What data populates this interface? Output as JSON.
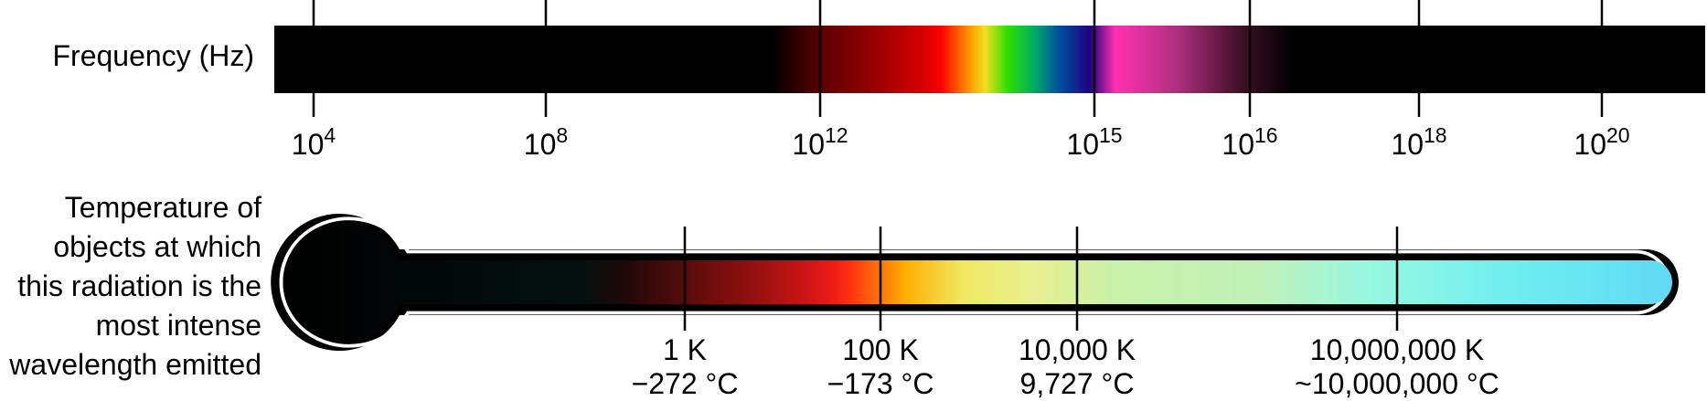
{
  "frequency_scale": {
    "label": "Frequency (Hz)",
    "ticks": [
      {
        "base": "10",
        "exponent": "4"
      },
      {
        "base": "10",
        "exponent": "8"
      },
      {
        "base": "10",
        "exponent": "12"
      },
      {
        "base": "10",
        "exponent": "15"
      },
      {
        "base": "10",
        "exponent": "16"
      },
      {
        "base": "10",
        "exponent": "18"
      },
      {
        "base": "10",
        "exponent": "20"
      }
    ]
  },
  "temperature_scale": {
    "label_lines": [
      "Temperature of",
      "objects at which",
      "this radiation is the",
      "most intense",
      "wavelength emitted"
    ],
    "ticks": [
      {
        "kelvin": "1 K",
        "celsius": "−272 °C"
      },
      {
        "kelvin": "100 K",
        "celsius": "−173 °C"
      },
      {
        "kelvin": "10,000 K",
        "celsius": "9,727 °C"
      },
      {
        "kelvin": "10,000,000 K",
        "celsius": "~10,000,000 °C"
      }
    ]
  },
  "colors": {
    "spectrum": [
      "#000000",
      "#a00000",
      "#ff0000",
      "#ffa000",
      "#f0e020",
      "#00e000",
      "#0050a0",
      "#200080",
      "#ff30b0",
      "#a03080",
      "#000000"
    ],
    "thermometer": [
      "#000000",
      "#041010",
      "#a01010",
      "#ff2010",
      "#ffb000",
      "#f0f080",
      "#c0f0b0",
      "#90f8e8",
      "#60e8f8",
      "#60d0f0"
    ]
  }
}
